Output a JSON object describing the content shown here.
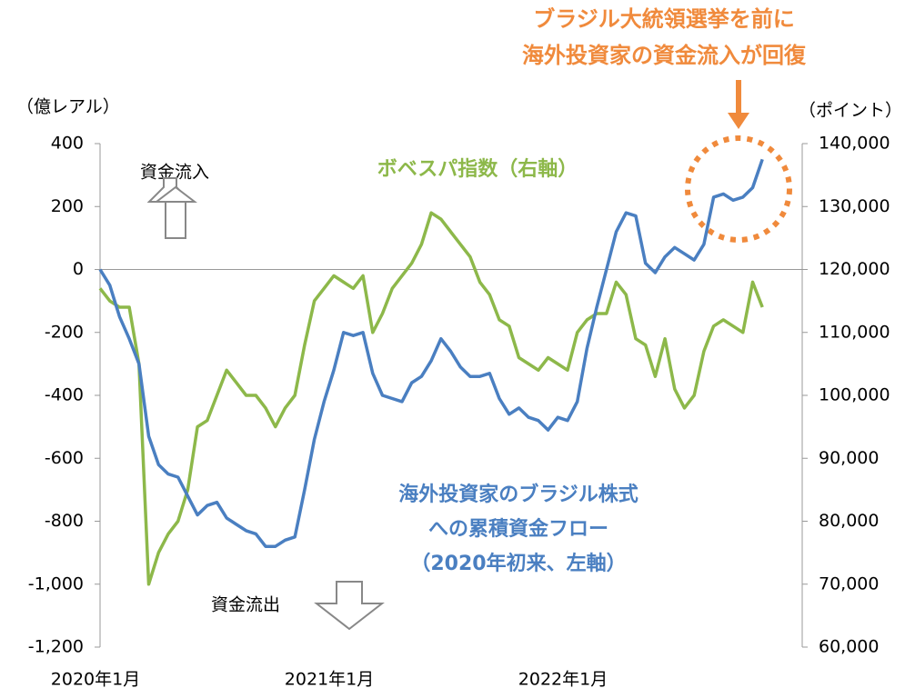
{
  "chart_data": {
    "type": "line",
    "annotations": {
      "headline": [
        "ブラジル大統領選挙を前に",
        "海外投資家の資金流入が回復"
      ],
      "y_label": "（億レアル）",
      "y2_label": "（ポイント）",
      "inflow": "資金流入",
      "outflow": "資金流出",
      "bovespa_label": "ボベスパ指数（右軸）",
      "flow_label": [
        "海外投資家のブラジル株式",
        "への累積資金フロー",
        "（2020年初来、左軸）"
      ]
    },
    "categories": [
      "2020年1月",
      null,
      null,
      null,
      null,
      null,
      null,
      null,
      null,
      null,
      null,
      null,
      null,
      null,
      null,
      null,
      null,
      null,
      null,
      null,
      null,
      null,
      null,
      null,
      "2021年1月",
      null,
      null,
      null,
      null,
      null,
      null,
      null,
      null,
      null,
      null,
      null,
      null,
      null,
      null,
      null,
      null,
      null,
      null,
      null,
      null,
      null,
      null,
      null,
      "2022年1月",
      null,
      null,
      null,
      null,
      null,
      null,
      null,
      null,
      null,
      null,
      null,
      null,
      null,
      null,
      null,
      null,
      null,
      null,
      null,
      null
    ],
    "series": [
      {
        "name": "海外投資家のブラジル株式への累積資金フロー",
        "color": "#4a7fc1",
        "axis": "y",
        "values": [
          0,
          -50,
          -150,
          -220,
          -300,
          -530,
          -620,
          -650,
          -660,
          -720,
          -780,
          -750,
          -740,
          -790,
          -810,
          -830,
          -840,
          -880,
          -880,
          -860,
          -850,
          -700,
          -540,
          -420,
          -320,
          -200,
          -210,
          -200,
          -330,
          -400,
          -410,
          -420,
          -360,
          -340,
          -290,
          -220,
          -260,
          -310,
          -340,
          -340,
          -330,
          -410,
          -460,
          -440,
          -470,
          -480,
          -510,
          -470,
          -480,
          -420,
          -250,
          -120,
          0,
          120,
          180,
          170,
          20,
          -10,
          40,
          70,
          50,
          30,
          80,
          230,
          240,
          220,
          230,
          260,
          350
        ]
      },
      {
        "name": "ボベスパ指数",
        "color": "#8db84a",
        "axis": "y2",
        "values": [
          117000,
          115000,
          114000,
          114000,
          105000,
          70000,
          75000,
          78000,
          80000,
          85000,
          95000,
          96000,
          100000,
          104000,
          102000,
          100000,
          100000,
          98000,
          95000,
          98000,
          100000,
          108000,
          115000,
          117000,
          119000,
          118000,
          117000,
          119000,
          110000,
          113000,
          117000,
          119000,
          121000,
          124000,
          129000,
          128000,
          126000,
          124000,
          122000,
          118000,
          116000,
          112000,
          111000,
          106000,
          105000,
          104000,
          106000,
          105000,
          104000,
          110000,
          112000,
          113000,
          113000,
          118000,
          116000,
          109000,
          108000,
          103000,
          109000,
          101000,
          98000,
          100000,
          107000,
          111000,
          112000,
          111000,
          110000,
          118000,
          114000
        ]
      }
    ],
    "ylim": [
      -1200,
      400
    ],
    "yticks": [
      {
        "value": -1200,
        "label": "-1,200"
      },
      {
        "value": -1000,
        "label": "-1,000"
      },
      -800,
      -600,
      -400,
      -200,
      0,
      200,
      400
    ],
    "y2lim": [
      60000,
      140000
    ],
    "y2ticks": [
      {
        "value": 60000,
        "label": "60,000"
      },
      {
        "value": 70000,
        "label": "70,000"
      },
      {
        "value": 80000,
        "label": "80,000"
      },
      {
        "value": 90000,
        "label": "90,000"
      },
      {
        "value": 100000,
        "label": "100,000"
      },
      {
        "value": 110000,
        "label": "110,000"
      },
      {
        "value": 120000,
        "label": "120,000"
      },
      {
        "value": 130000,
        "label": "130,000"
      },
      {
        "value": 140000,
        "label": "140,000"
      }
    ],
    "grid": false
  }
}
